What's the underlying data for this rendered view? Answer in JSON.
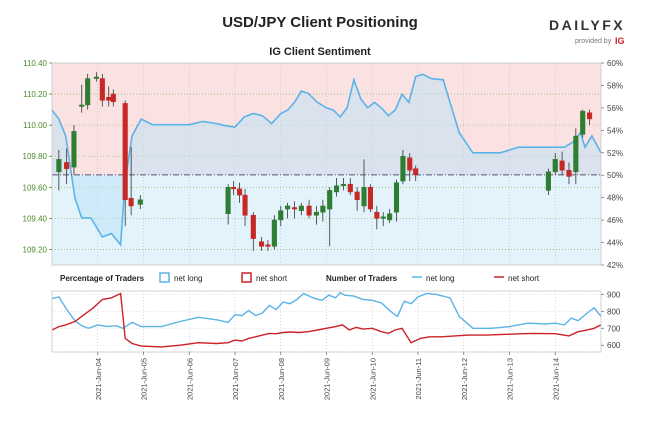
{
  "header": {
    "title": "USD/JPY Client Positioning",
    "subtitle": "IG Client Sentiment",
    "logo_text": "DAILYFX",
    "provided_by": "provided by",
    "provided_brand": "IG"
  },
  "legend": {
    "percentage_label": "Percentage of Traders",
    "net_long_label": "net long",
    "net_short_label": "net short",
    "number_label": "Number of Traders",
    "net_long_label2": "net long",
    "net_short_label2": "net short"
  },
  "colors": {
    "net_long": "#5ab4e8",
    "net_short": "#cc2127",
    "long_fill": "#e3f3fb",
    "short_fill": "#fbe2e2",
    "up_candle": "#2e7d32",
    "down_candle": "#c62828",
    "price_axis": "#4a8a2a",
    "brand_red": "#cc2127"
  },
  "chart_data": [
    {
      "type": "candlestick",
      "name": "USD/JPY price",
      "ylim": [
        109.1,
        110.4
      ],
      "y_ticks": [
        109.2,
        109.4,
        109.6,
        109.8,
        110.0,
        110.2,
        110.4
      ],
      "y_tick_labels": [
        "109.20",
        "109.40",
        "109.60",
        "109.80",
        "110.00",
        "110.20",
        "110.40"
      ],
      "reference_line": 109.68,
      "candles": [
        {
          "t": 3.15,
          "o": 109.7,
          "h": 109.84,
          "l": 109.58,
          "c": 109.78
        },
        {
          "t": 3.32,
          "o": 109.76,
          "h": 109.85,
          "l": 109.62,
          "c": 109.72
        },
        {
          "t": 3.48,
          "o": 109.73,
          "h": 110.0,
          "l": 109.68,
          "c": 109.96
        },
        {
          "t": 3.65,
          "o": 110.12,
          "h": 110.26,
          "l": 110.08,
          "c": 110.13
        },
        {
          "t": 3.78,
          "o": 110.13,
          "h": 110.33,
          "l": 110.1,
          "c": 110.3
        },
        {
          "t": 3.97,
          "o": 110.3,
          "h": 110.34,
          "l": 110.28,
          "c": 110.31
        },
        {
          "t": 4.1,
          "o": 110.3,
          "h": 110.33,
          "l": 110.12,
          "c": 110.16
        },
        {
          "t": 4.24,
          "o": 110.18,
          "h": 110.25,
          "l": 110.12,
          "c": 110.16
        },
        {
          "t": 4.34,
          "o": 110.2,
          "h": 110.23,
          "l": 110.12,
          "c": 110.15
        },
        {
          "t": 4.6,
          "o": 110.14,
          "h": 110.16,
          "l": 109.35,
          "c": 109.52
        },
        {
          "t": 4.73,
          "o": 109.53,
          "h": 109.86,
          "l": 109.42,
          "c": 109.48
        },
        {
          "t": 4.93,
          "o": 109.49,
          "h": 109.55,
          "l": 109.46,
          "c": 109.52
        },
        {
          "t": 6.85,
          "o": 109.43,
          "h": 109.62,
          "l": 109.36,
          "c": 109.6
        },
        {
          "t": 6.97,
          "o": 109.6,
          "h": 109.64,
          "l": 109.55,
          "c": 109.59
        },
        {
          "t": 7.1,
          "o": 109.59,
          "h": 109.63,
          "l": 109.5,
          "c": 109.55
        },
        {
          "t": 7.22,
          "o": 109.55,
          "h": 109.59,
          "l": 109.35,
          "c": 109.42
        },
        {
          "t": 7.4,
          "o": 109.42,
          "h": 109.44,
          "l": 109.19,
          "c": 109.27
        },
        {
          "t": 7.58,
          "o": 109.25,
          "h": 109.28,
          "l": 109.19,
          "c": 109.22
        },
        {
          "t": 7.72,
          "o": 109.23,
          "h": 109.26,
          "l": 109.19,
          "c": 109.22
        },
        {
          "t": 7.86,
          "o": 109.22,
          "h": 109.42,
          "l": 109.2,
          "c": 109.39
        },
        {
          "t": 8.0,
          "o": 109.39,
          "h": 109.48,
          "l": 109.35,
          "c": 109.45
        },
        {
          "t": 8.15,
          "o": 109.46,
          "h": 109.5,
          "l": 109.4,
          "c": 109.48
        },
        {
          "t": 8.3,
          "o": 109.47,
          "h": 109.51,
          "l": 109.4,
          "c": 109.46
        },
        {
          "t": 8.45,
          "o": 109.45,
          "h": 109.5,
          "l": 109.42,
          "c": 109.48
        },
        {
          "t": 8.62,
          "o": 109.48,
          "h": 109.52,
          "l": 109.4,
          "c": 109.42
        },
        {
          "t": 8.78,
          "o": 109.42,
          "h": 109.48,
          "l": 109.36,
          "c": 109.44
        },
        {
          "t": 8.92,
          "o": 109.44,
          "h": 109.52,
          "l": 109.38,
          "c": 109.48
        },
        {
          "t": 9.07,
          "o": 109.46,
          "h": 109.6,
          "l": 109.22,
          "c": 109.58
        },
        {
          "t": 9.22,
          "o": 109.57,
          "h": 109.66,
          "l": 109.54,
          "c": 109.61
        },
        {
          "t": 9.37,
          "o": 109.61,
          "h": 109.66,
          "l": 109.58,
          "c": 109.62
        },
        {
          "t": 9.52,
          "o": 109.62,
          "h": 109.66,
          "l": 109.55,
          "c": 109.57
        },
        {
          "t": 9.67,
          "o": 109.57,
          "h": 109.6,
          "l": 109.45,
          "c": 109.52
        },
        {
          "t": 9.82,
          "o": 109.48,
          "h": 109.78,
          "l": 109.44,
          "c": 109.6
        },
        {
          "t": 9.96,
          "o": 109.6,
          "h": 109.62,
          "l": 109.44,
          "c": 109.46
        },
        {
          "t": 10.1,
          "o": 109.44,
          "h": 109.48,
          "l": 109.33,
          "c": 109.4
        },
        {
          "t": 10.24,
          "o": 109.4,
          "h": 109.44,
          "l": 109.35,
          "c": 109.41
        },
        {
          "t": 10.38,
          "o": 109.39,
          "h": 109.46,
          "l": 109.37,
          "c": 109.43
        },
        {
          "t": 10.53,
          "o": 109.44,
          "h": 109.65,
          "l": 109.38,
          "c": 109.63
        },
        {
          "t": 10.67,
          "o": 109.64,
          "h": 109.84,
          "l": 109.62,
          "c": 109.8
        },
        {
          "t": 10.82,
          "o": 109.79,
          "h": 109.82,
          "l": 109.64,
          "c": 109.71
        },
        {
          "t": 10.95,
          "o": 109.72,
          "h": 109.74,
          "l": 109.64,
          "c": 109.68
        },
        {
          "t": 13.85,
          "o": 109.58,
          "h": 109.72,
          "l": 109.55,
          "c": 109.7
        },
        {
          "t": 14.0,
          "o": 109.7,
          "h": 109.82,
          "l": 109.68,
          "c": 109.78
        },
        {
          "t": 14.15,
          "o": 109.77,
          "h": 109.83,
          "l": 109.68,
          "c": 109.71
        },
        {
          "t": 14.3,
          "o": 109.71,
          "h": 109.76,
          "l": 109.62,
          "c": 109.67
        },
        {
          "t": 14.45,
          "o": 109.7,
          "h": 109.98,
          "l": 109.62,
          "c": 109.93
        },
        {
          "t": 14.6,
          "o": 109.94,
          "h": 110.1,
          "l": 109.92,
          "c": 110.09
        },
        {
          "t": 14.75,
          "o": 110.08,
          "h": 110.1,
          "l": 110.0,
          "c": 110.04
        }
      ]
    },
    {
      "type": "area",
      "name": "net long percentage",
      "ylim": [
        42,
        60
      ],
      "y_ticks": [
        42,
        44,
        46,
        48,
        50,
        52,
        54,
        56,
        58,
        60
      ],
      "y_tick_labels": [
        "42%",
        "44%",
        "46%",
        "48%",
        "50%",
        "52%",
        "54%",
        "56%",
        "58%",
        "60%"
      ],
      "baseline": 50,
      "x": [
        3.0,
        3.15,
        3.3,
        3.5,
        3.65,
        3.85,
        4.1,
        4.3,
        4.5,
        4.6,
        4.75,
        4.95,
        5.2,
        5.6,
        6.0,
        6.3,
        6.6,
        6.8,
        7.0,
        7.2,
        7.4,
        7.6,
        7.8,
        8.0,
        8.15,
        8.3,
        8.45,
        8.6,
        8.8,
        9.0,
        9.15,
        9.3,
        9.45,
        9.6,
        9.75,
        9.9,
        10.05,
        10.2,
        10.35,
        10.5,
        10.65,
        10.8,
        10.95,
        11.1,
        11.3,
        11.55,
        11.7,
        11.9,
        12.2,
        12.8,
        13.2,
        13.7,
        14.0,
        14.2,
        14.4,
        14.55,
        14.65,
        14.8,
        15.0
      ],
      "values": [
        55.8,
        55.0,
        53.5,
        48.0,
        46.2,
        46.2,
        44.5,
        44.8,
        43.8,
        49.5,
        53.5,
        55.0,
        54.5,
        54.5,
        54.5,
        54.8,
        54.6,
        54.4,
        54.3,
        55.2,
        55.5,
        55.3,
        54.6,
        55.5,
        55.8,
        56.5,
        57.5,
        57.3,
        56.5,
        56.0,
        55.8,
        55.2,
        56.0,
        58.5,
        56.8,
        56.0,
        56.5,
        56.0,
        55.3,
        55.8,
        57.2,
        56.5,
        58.8,
        59.0,
        58.6,
        58.5,
        56.5,
        53.8,
        52.0,
        52.0,
        52.5,
        52.5,
        52.5,
        52.5,
        53.0,
        53.8,
        52.5,
        53.5,
        52.0
      ]
    },
    {
      "type": "line",
      "name": "Number of Traders",
      "ylim": [
        560,
        920
      ],
      "y_ticks": [
        600,
        700,
        800,
        900
      ],
      "y_tick_labels": [
        "600",
        "700",
        "800",
        "900"
      ],
      "x_ticks": [
        4,
        5,
        6,
        7,
        8,
        9,
        10,
        11,
        12,
        13,
        14
      ],
      "x_tick_labels": [
        "2021-Jun-04",
        "2021-Jun-05",
        "2021-Jun-06",
        "2021-Jun-07",
        "2021-Jun-08",
        "2021-Jun-09",
        "2021-Jun-10",
        "2021-Jun-11",
        "2021-Jun-12",
        "2021-Jun-13",
        "2021-Jun-14"
      ],
      "x_range": [
        3.0,
        15.0
      ],
      "series": [
        {
          "name": "net long",
          "x": [
            3.0,
            3.15,
            3.3,
            3.5,
            3.65,
            3.8,
            4.0,
            4.2,
            4.4,
            4.55,
            4.75,
            4.95,
            5.4,
            5.8,
            6.2,
            6.6,
            6.85,
            7.0,
            7.15,
            7.3,
            7.45,
            7.6,
            7.75,
            7.9,
            8.05,
            8.2,
            8.35,
            8.5,
            8.7,
            8.9,
            9.05,
            9.2,
            9.3,
            9.4,
            9.6,
            9.8,
            10.0,
            10.2,
            10.4,
            10.55,
            10.7,
            10.85,
            11.0,
            11.2,
            11.4,
            11.7,
            11.9,
            12.2,
            12.6,
            13.0,
            13.4,
            13.8,
            14.0,
            14.2,
            14.35,
            14.5,
            14.7,
            14.85,
            15.0
          ],
          "values": [
            875,
            885,
            820,
            745,
            715,
            700,
            720,
            710,
            715,
            700,
            735,
            710,
            710,
            740,
            765,
            750,
            735,
            780,
            775,
            805,
            775,
            790,
            835,
            810,
            855,
            845,
            870,
            905,
            880,
            865,
            895,
            880,
            910,
            895,
            890,
            870,
            865,
            850,
            800,
            770,
            860,
            845,
            885,
            905,
            900,
            880,
            770,
            700,
            700,
            710,
            730,
            725,
            730,
            720,
            760,
            745,
            790,
            820,
            770
          ]
        },
        {
          "name": "net short",
          "x": [
            3.0,
            3.15,
            3.3,
            3.5,
            3.7,
            3.9,
            4.1,
            4.3,
            4.5,
            4.6,
            4.75,
            4.95,
            5.4,
            5.8,
            6.2,
            6.6,
            6.85,
            7.0,
            7.15,
            7.3,
            7.45,
            7.6,
            7.75,
            7.9,
            8.05,
            8.2,
            8.4,
            8.6,
            8.8,
            9.0,
            9.2,
            9.35,
            9.5,
            9.65,
            9.8,
            10.0,
            10.2,
            10.35,
            10.5,
            10.65,
            10.85,
            11.05,
            11.25,
            11.5,
            11.8,
            12.1,
            12.5,
            13.0,
            13.5,
            14.0,
            14.3,
            14.5,
            14.7,
            14.85,
            15.0
          ],
          "values": [
            690,
            710,
            720,
            740,
            780,
            820,
            870,
            880,
            905,
            640,
            610,
            595,
            590,
            600,
            615,
            610,
            615,
            630,
            625,
            640,
            650,
            660,
            670,
            668,
            675,
            678,
            675,
            680,
            690,
            700,
            710,
            720,
            690,
            705,
            695,
            700,
            680,
            670,
            690,
            700,
            615,
            640,
            650,
            650,
            655,
            660,
            660,
            665,
            670,
            668,
            655,
            680,
            690,
            700,
            720
          ]
        }
      ]
    }
  ]
}
